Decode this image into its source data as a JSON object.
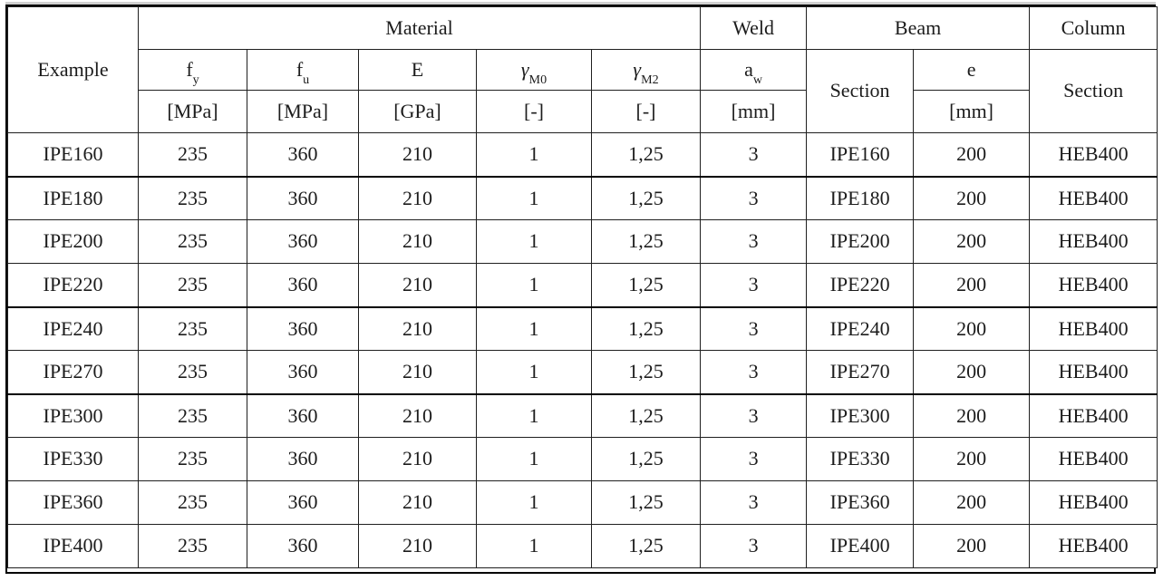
{
  "table": {
    "header": {
      "example": "Example",
      "groups": {
        "material": "Material",
        "weld": "Weld",
        "beam": "Beam",
        "column": "Column"
      },
      "symbols": {
        "fy": {
          "main": "f",
          "sub": "y",
          "unit": "[MPa]"
        },
        "fu": {
          "main": "f",
          "sub": "u",
          "unit": "[MPa]"
        },
        "e_modulus": {
          "main": "E",
          "sub": "",
          "unit": "[GPa]"
        },
        "gamma_m0": {
          "main": "γ",
          "sub": "M0",
          "unit": "[-]"
        },
        "gamma_m2": {
          "main": "γ",
          "sub": "M2",
          "unit": "[-]"
        },
        "aw": {
          "main": "a",
          "sub": "w",
          "unit": "[mm]"
        },
        "ecc": {
          "main": "e",
          "sub": "",
          "unit": "[mm]"
        }
      },
      "beam_section": "Section",
      "column_section": "Section"
    },
    "rows": [
      [
        "IPE160",
        "235",
        "360",
        "210",
        "1",
        "1,25",
        "3",
        "IPE160",
        "200",
        "HEB400"
      ],
      [
        "IPE180",
        "235",
        "360",
        "210",
        "1",
        "1,25",
        "3",
        "IPE180",
        "200",
        "HEB400"
      ],
      [
        "IPE200",
        "235",
        "360",
        "210",
        "1",
        "1,25",
        "3",
        "IPE200",
        "200",
        "HEB400"
      ],
      [
        "IPE220",
        "235",
        "360",
        "210",
        "1",
        "1,25",
        "3",
        "IPE220",
        "200",
        "HEB400"
      ],
      [
        "IPE240",
        "235",
        "360",
        "210",
        "1",
        "1,25",
        "3",
        "IPE240",
        "200",
        "HEB400"
      ],
      [
        "IPE270",
        "235",
        "360",
        "210",
        "1",
        "1,25",
        "3",
        "IPE270",
        "200",
        "HEB400"
      ],
      [
        "IPE300",
        "235",
        "360",
        "210",
        "1",
        "1,25",
        "3",
        "IPE300",
        "200",
        "HEB400"
      ],
      [
        "IPE330",
        "235",
        "360",
        "210",
        "1",
        "1,25",
        "3",
        "IPE330",
        "200",
        "HEB400"
      ],
      [
        "IPE360",
        "235",
        "360",
        "210",
        "1",
        "1,25",
        "3",
        "IPE360",
        "200",
        "HEB400"
      ],
      [
        "IPE400",
        "235",
        "360",
        "210",
        "1",
        "1,25",
        "3",
        "IPE400",
        "200",
        "HEB400"
      ]
    ]
  },
  "colors": {
    "text": "#1c1c1c",
    "grid_line": "#1f1f1f",
    "frame": "#000000",
    "background": "#ffffff"
  }
}
